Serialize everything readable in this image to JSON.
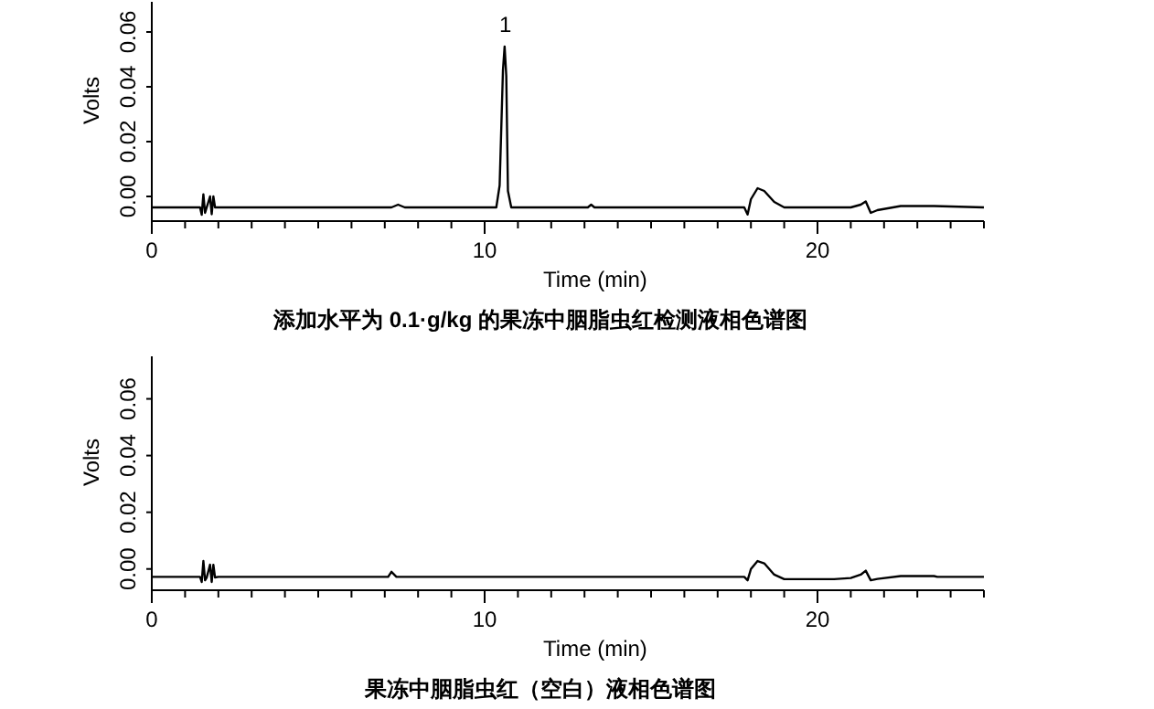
{
  "chart_data": [
    {
      "type": "line",
      "xlabel": "Time (min)",
      "ylabel": "Volts",
      "title": "添加水平为 0.1·g/kg 的果冻中胭脂虫红检测液相色谱图",
      "annotations": [
        {
          "text": "1",
          "x": 10.62,
          "y": 0.0547
        }
      ],
      "xlim": [
        0,
        25
      ],
      "ylim": [
        -0.009,
        0.071
      ],
      "xticks": [
        0,
        {
          "value": 1,
          "label": null
        },
        {
          "value": 2,
          "label": null
        },
        {
          "value": 3,
          "label": null
        },
        {
          "value": 4,
          "label": null
        },
        {
          "value": 5,
          "label": null
        },
        {
          "value": 6,
          "label": null
        },
        {
          "value": 7,
          "label": null
        },
        {
          "value": 8,
          "label": null
        },
        {
          "value": 9,
          "label": null
        },
        10,
        {
          "value": 11,
          "label": null
        },
        {
          "value": 12,
          "label": null
        },
        {
          "value": 13,
          "label": null
        },
        {
          "value": 14,
          "label": null
        },
        {
          "value": 15,
          "label": null
        },
        {
          "value": 16,
          "label": null
        },
        {
          "value": 17,
          "label": null
        },
        {
          "value": 18,
          "label": null
        },
        {
          "value": 19,
          "label": null
        },
        20,
        {
          "value": 21,
          "label": null
        },
        {
          "value": 22,
          "label": null
        },
        {
          "value": 23,
          "label": null
        },
        {
          "value": 24,
          "label": null
        },
        {
          "value": 25,
          "label": null
        }
      ],
      "yticks": [
        {
          "value": 0,
          "label": "0.00"
        },
        {
          "value": 0.02,
          "label": "0.02"
        },
        {
          "value": 0.04,
          "label": "0.04"
        },
        {
          "value": 0.06,
          "label": "0.06"
        }
      ],
      "series": [
        {
          "color": "#000000",
          "x": [
            0,
            1.45,
            1.5,
            1.55,
            1.6,
            1.65,
            1.75,
            1.8,
            1.85,
            1.9,
            2.0,
            3,
            5,
            7.2,
            7.4,
            7.6,
            10.35,
            10.45,
            10.55,
            10.6,
            10.65,
            10.7,
            10.8,
            11,
            13.1,
            13.2,
            13.3,
            17.8,
            17.9,
            18.0,
            18.2,
            18.4,
            18.7,
            19.0,
            19.5,
            20.5,
            21.0,
            21.3,
            21.45,
            21.6,
            21.8,
            22.5,
            23.5,
            25
          ],
          "values": [
            -0.004,
            -0.004,
            -0.0067,
            0.0008,
            -0.006,
            -0.004,
            0.0,
            -0.0065,
            0.0,
            -0.004,
            -0.004,
            -0.004,
            -0.004,
            -0.004,
            -0.003,
            -0.004,
            -0.004,
            0.004,
            0.046,
            0.0547,
            0.044,
            0.002,
            -0.004,
            -0.004,
            -0.004,
            -0.003,
            -0.004,
            -0.004,
            -0.0066,
            -0.001,
            0.003,
            0.002,
            -0.002,
            -0.004,
            -0.004,
            -0.004,
            -0.004,
            -0.003,
            -0.0018,
            -0.006,
            -0.005,
            -0.0035,
            -0.0035,
            -0.004
          ]
        }
      ]
    },
    {
      "type": "line",
      "xlabel": "Time (min)",
      "ylabel": "Volts",
      "title": "果冻中胭脂虫红（空白）液相色谱图",
      "xlim": [
        0,
        25
      ],
      "ylim": [
        -0.0075,
        0.075
      ],
      "xticks": [
        0,
        {
          "value": 1,
          "label": null
        },
        {
          "value": 2,
          "label": null
        },
        {
          "value": 3,
          "label": null
        },
        {
          "value": 4,
          "label": null
        },
        {
          "value": 5,
          "label": null
        },
        {
          "value": 6,
          "label": null
        },
        {
          "value": 7,
          "label": null
        },
        {
          "value": 8,
          "label": null
        },
        {
          "value": 9,
          "label": null
        },
        10,
        {
          "value": 11,
          "label": null
        },
        {
          "value": 12,
          "label": null
        },
        {
          "value": 13,
          "label": null
        },
        {
          "value": 14,
          "label": null
        },
        {
          "value": 15,
          "label": null
        },
        {
          "value": 16,
          "label": null
        },
        {
          "value": 17,
          "label": null
        },
        {
          "value": 18,
          "label": null
        },
        {
          "value": 19,
          "label": null
        },
        20,
        {
          "value": 21,
          "label": null
        },
        {
          "value": 22,
          "label": null
        },
        {
          "value": 23,
          "label": null
        },
        {
          "value": 24,
          "label": null
        },
        {
          "value": 25,
          "label": null
        }
      ],
      "yticks": [
        {
          "value": 0,
          "label": "0.00"
        },
        {
          "value": 0.02,
          "label": "0.02"
        },
        {
          "value": 0.04,
          "label": "0.04"
        },
        {
          "value": 0.06,
          "label": "0.06"
        }
      ],
      "series": [
        {
          "color": "#000000",
          "x": [
            0,
            0.3,
            1.45,
            1.5,
            1.55,
            1.6,
            1.65,
            1.75,
            1.8,
            1.85,
            1.9,
            2.0,
            7.1,
            7.2,
            7.35,
            17.8,
            17.9,
            18.0,
            18.2,
            18.4,
            18.7,
            19.0,
            20.5,
            21.0,
            21.3,
            21.45,
            21.6,
            21.8,
            22.5,
            23.5,
            23.6,
            25
          ],
          "values": [
            -0.0028,
            -0.0028,
            -0.0028,
            -0.0046,
            0.0028,
            -0.004,
            -0.003,
            0.0015,
            -0.0046,
            0.0015,
            -0.003,
            -0.0028,
            -0.0028,
            -0.001,
            -0.0028,
            -0.0028,
            -0.004,
            0.0,
            0.0028,
            0.002,
            -0.002,
            -0.0036,
            -0.0036,
            -0.0032,
            -0.002,
            -0.0006,
            -0.004,
            -0.0035,
            -0.0025,
            -0.0025,
            -0.0028,
            -0.0028
          ]
        }
      ]
    }
  ]
}
